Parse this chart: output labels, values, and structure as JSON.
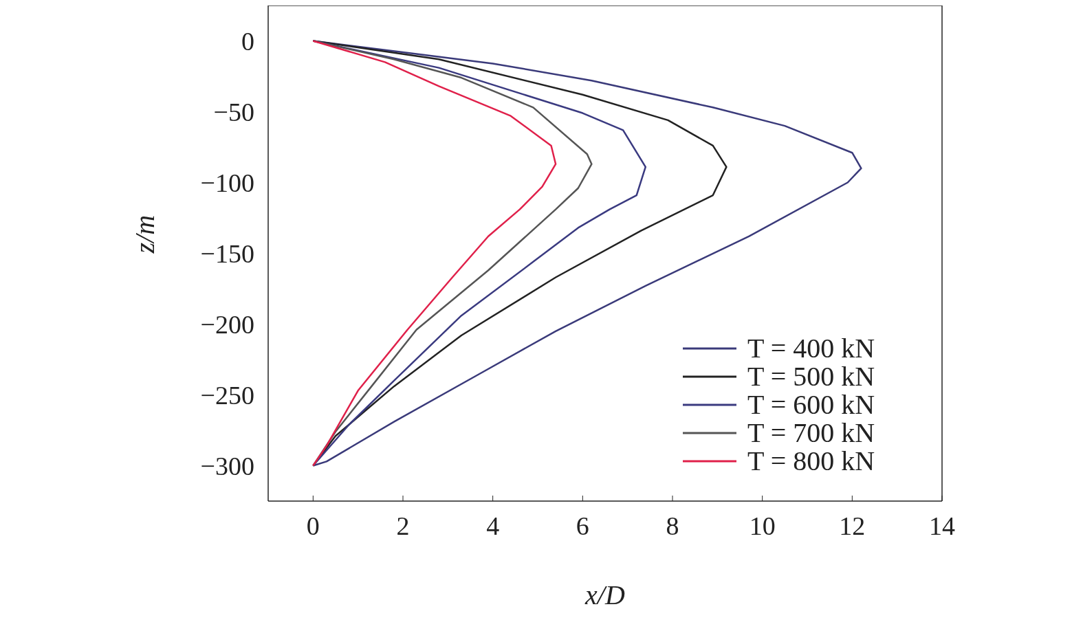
{
  "chart_data": {
    "type": "line",
    "xlabel": "x/D",
    "ylabel": "z/m",
    "xlim": [
      -1,
      14
    ],
    "xticks": [
      0,
      2,
      4,
      6,
      8,
      10,
      12,
      14
    ],
    "ylim": [
      -325,
      25
    ],
    "yticks": [
      0,
      -50,
      -100,
      -150,
      -200,
      -250,
      -300
    ],
    "grid": false,
    "legend": "bottom right",
    "marker": "none",
    "line_style": "solid",
    "series": [
      {
        "name": "T = 400 kN",
        "color": "#3a3a7a",
        "x": [
          0,
          2,
          4,
          6.2,
          8.9,
          10.5,
          12.0,
          12.2,
          11.9,
          9.7,
          7.4,
          5.4,
          3.6,
          1.8,
          0.3,
          0
        ],
        "values": [
          0,
          -8,
          -16,
          -28,
          -47,
          -60,
          -79,
          -90,
          -100,
          -138,
          -173,
          -205,
          -237,
          -269,
          -297,
          -300
        ]
      },
      {
        "name": "T = 500 kN",
        "color": "#222222",
        "x": [
          0,
          2.8,
          6.0,
          7.9,
          8.9,
          9.2,
          8.9,
          7.3,
          5.4,
          3.3,
          1.8,
          0.5,
          0
        ],
        "values": [
          0,
          -13,
          -38,
          -56,
          -74,
          -89,
          -109,
          -134,
          -167,
          -208,
          -244,
          -279,
          -300
        ]
      },
      {
        "name": "T = 600 kN",
        "color": "#3a3a80",
        "x": [
          0,
          2.8,
          6.0,
          6.9,
          7.4,
          7.2,
          6.6,
          5.9,
          4.9,
          3.3,
          1.8,
          0.8,
          0
        ],
        "values": [
          0,
          -19,
          -51,
          -63,
          -89,
          -109,
          -119,
          -132,
          -156,
          -194,
          -240,
          -271,
          -300
        ]
      },
      {
        "name": "T = 700 kN",
        "color": "#555555",
        "x": [
          0,
          1.8,
          3.3,
          4.9,
          6.1,
          6.2,
          5.9,
          5.4,
          3.9,
          2.3,
          1.3,
          0.5,
          0
        ],
        "values": [
          0,
          -13,
          -26,
          -47,
          -80,
          -87,
          -104,
          -119,
          -162,
          -204,
          -244,
          -276,
          -300
        ]
      },
      {
        "name": "T = 800 kN",
        "color": "#e0204a",
        "x": [
          0,
          1.6,
          2.8,
          4.4,
          5.3,
          5.4,
          5.1,
          4.6,
          3.9,
          3.1,
          2.1,
          1.0,
          0.3,
          0
        ],
        "values": [
          0,
          -15,
          -32,
          -53,
          -74,
          -87,
          -103,
          -119,
          -138,
          -167,
          -204,
          -247,
          -286,
          -300
        ]
      }
    ]
  }
}
